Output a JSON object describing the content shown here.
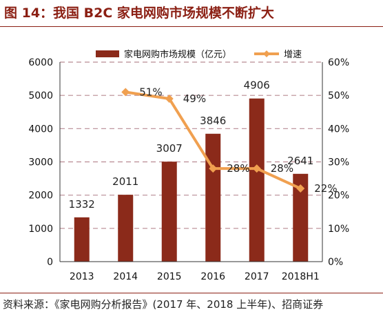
{
  "figure": {
    "title": "图 14：我国 B2C 家电网购市场规模不断扩大",
    "source": "资料来源：《家电网购分析报告》(2017 年、2018 上半年)、招商证券"
  },
  "chart_data": {
    "type": "bar",
    "categories": [
      "2013",
      "2014",
      "2015",
      "2016",
      "2017",
      "2018H1"
    ],
    "series": [
      {
        "name": "家电网购市场规模（亿元）",
        "type": "bar",
        "axis": "left",
        "color": "#8B2A1A",
        "values": [
          1332,
          2011,
          3007,
          3846,
          4906,
          2641
        ],
        "labels": [
          "1332",
          "2011",
          "3007",
          "3846",
          "4906",
          "2641"
        ]
      },
      {
        "name": "增速",
        "type": "line",
        "axis": "right",
        "color": "#F0A050",
        "values": [
          null,
          51,
          49,
          28,
          28,
          22
        ],
        "labels": [
          "",
          "51%",
          "49%",
          "28%",
          "28%",
          "22%"
        ]
      }
    ],
    "y_left": {
      "min": 0,
      "max": 6000,
      "ticks": [
        "0",
        "1000",
        "2000",
        "3000",
        "4000",
        "5000",
        "6000"
      ]
    },
    "y_right": {
      "min": 0,
      "max": 60,
      "ticks": [
        "0%",
        "10%",
        "20%",
        "30%",
        "40%",
        "50%",
        "60%"
      ]
    },
    "grid": true,
    "legend_position": "top"
  }
}
